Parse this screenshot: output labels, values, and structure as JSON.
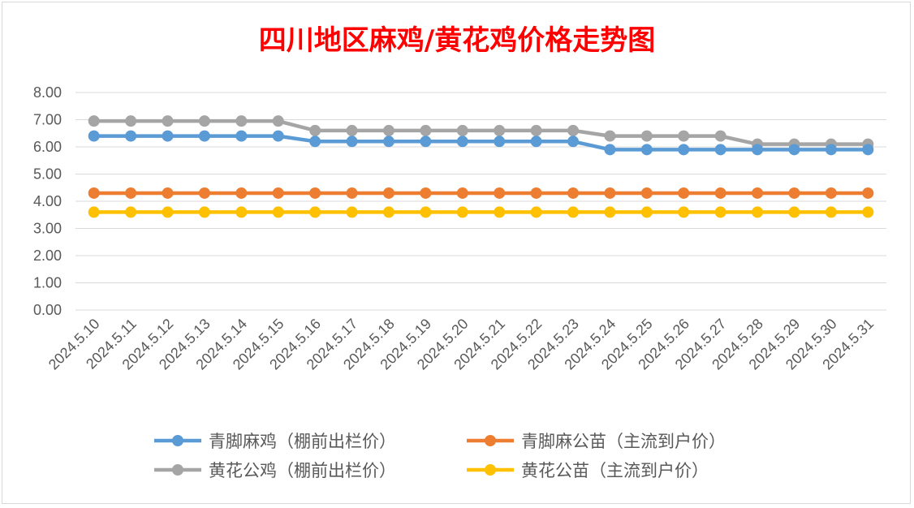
{
  "chart_data": {
    "type": "line",
    "title": "四川地区麻鸡/黄花鸡价格走势图",
    "xlabel": "",
    "ylabel": "",
    "ylim": [
      0,
      8
    ],
    "yticks": [
      "0.00",
      "1.00",
      "2.00",
      "3.00",
      "4.00",
      "5.00",
      "6.00",
      "7.00",
      "8.00"
    ],
    "grid": true,
    "legend_position": "bottom",
    "categories": [
      "2024.5.10",
      "2024.5.11",
      "2024.5.12",
      "2024.5.13",
      "2024.5.14",
      "2024.5.15",
      "2024.5.16",
      "2024.5.17",
      "2024.5.18",
      "2024.5.19",
      "2024.5.20",
      "2024.5.21",
      "2024.5.22",
      "2024.5.23",
      "2024.5.24",
      "2024.5.25",
      "2024.5.26",
      "2024.5.27",
      "2024.5.28",
      "2024.5.29",
      "2024.5.30",
      "2024.5.31"
    ],
    "series": [
      {
        "name": "青脚麻鸡（棚前出栏价）",
        "color": "#5b9bd5",
        "values": [
          6.4,
          6.4,
          6.4,
          6.4,
          6.4,
          6.4,
          6.2,
          6.2,
          6.2,
          6.2,
          6.2,
          6.2,
          6.2,
          6.2,
          5.9,
          5.9,
          5.9,
          5.9,
          5.9,
          5.9,
          5.9,
          5.9
        ]
      },
      {
        "name": "青脚麻公苗（主流到户价）",
        "color": "#ed7d31",
        "values": [
          4.3,
          4.3,
          4.3,
          4.3,
          4.3,
          4.3,
          4.3,
          4.3,
          4.3,
          4.3,
          4.3,
          4.3,
          4.3,
          4.3,
          4.3,
          4.3,
          4.3,
          4.3,
          4.3,
          4.3,
          4.3,
          4.3
        ]
      },
      {
        "name": "黄花公鸡（棚前出栏价）",
        "color": "#a5a5a5",
        "values": [
          6.95,
          6.95,
          6.95,
          6.95,
          6.95,
          6.95,
          6.6,
          6.6,
          6.6,
          6.6,
          6.6,
          6.6,
          6.6,
          6.6,
          6.4,
          6.4,
          6.4,
          6.4,
          6.1,
          6.1,
          6.1,
          6.1
        ]
      },
      {
        "name": "黄花公苗（主流到户价）",
        "color": "#ffc000",
        "values": [
          3.6,
          3.6,
          3.6,
          3.6,
          3.6,
          3.6,
          3.6,
          3.6,
          3.6,
          3.6,
          3.6,
          3.6,
          3.6,
          3.6,
          3.6,
          3.6,
          3.6,
          3.6,
          3.6,
          3.6,
          3.6,
          3.6
        ]
      }
    ]
  }
}
